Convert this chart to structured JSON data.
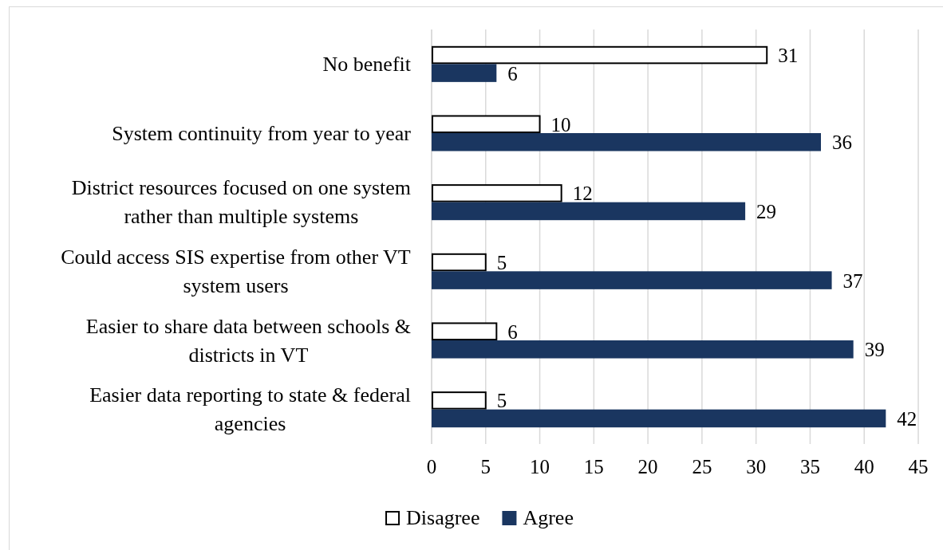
{
  "chart_data": {
    "type": "bar",
    "orientation": "horizontal",
    "categories": [
      "No benefit",
      "System continuity from year to year",
      "District resources focused on one system rather than multiple systems",
      "Could access SIS expertise from other VT system users",
      "Easier to share data between schools & districts in VT",
      "Easier data reporting to state & federal agencies"
    ],
    "series": [
      {
        "name": "Disagree",
        "color": "#ffffff",
        "values": [
          31,
          10,
          12,
          5,
          6,
          5
        ]
      },
      {
        "name": "Agree",
        "color": "#1a3660",
        "values": [
          6,
          36,
          29,
          37,
          39,
          42
        ]
      }
    ],
    "xlim": [
      0,
      45
    ],
    "xticks": [
      0,
      5,
      10,
      15,
      20,
      25,
      30,
      35,
      40,
      45
    ],
    "grid": "x",
    "legend": "bottom",
    "data_labels": true
  }
}
